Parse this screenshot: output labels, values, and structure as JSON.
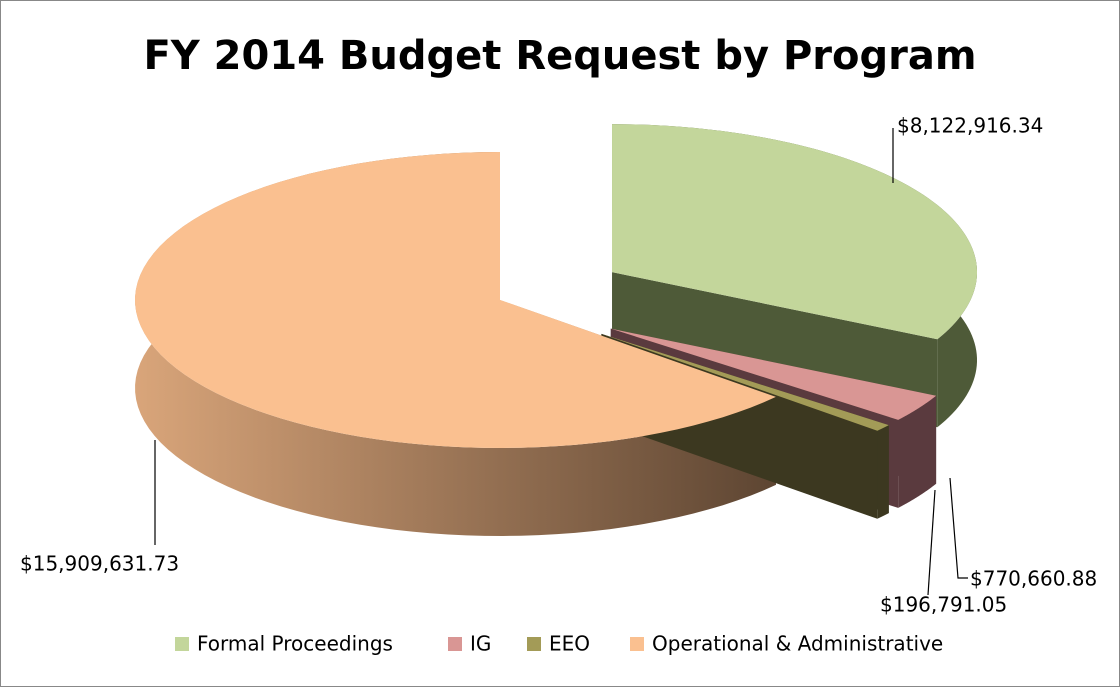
{
  "chart_data": {
    "type": "pie",
    "title": "FY 2014 Budget Request by Program",
    "categories": [
      "Formal Proceedings",
      "IG",
      "EEO",
      "Operational & Administrative"
    ],
    "values": [
      8122916.34,
      770660.88,
      196791.05,
      15909631.73
    ],
    "value_labels": [
      "$8,122,916.34",
      "$770,660.88",
      "$196,791.05",
      "$15,909,631.73"
    ],
    "colors": [
      "#c3d69b",
      "#d99694",
      "#a39b57",
      "#fac090"
    ],
    "legend": "bottom"
  }
}
